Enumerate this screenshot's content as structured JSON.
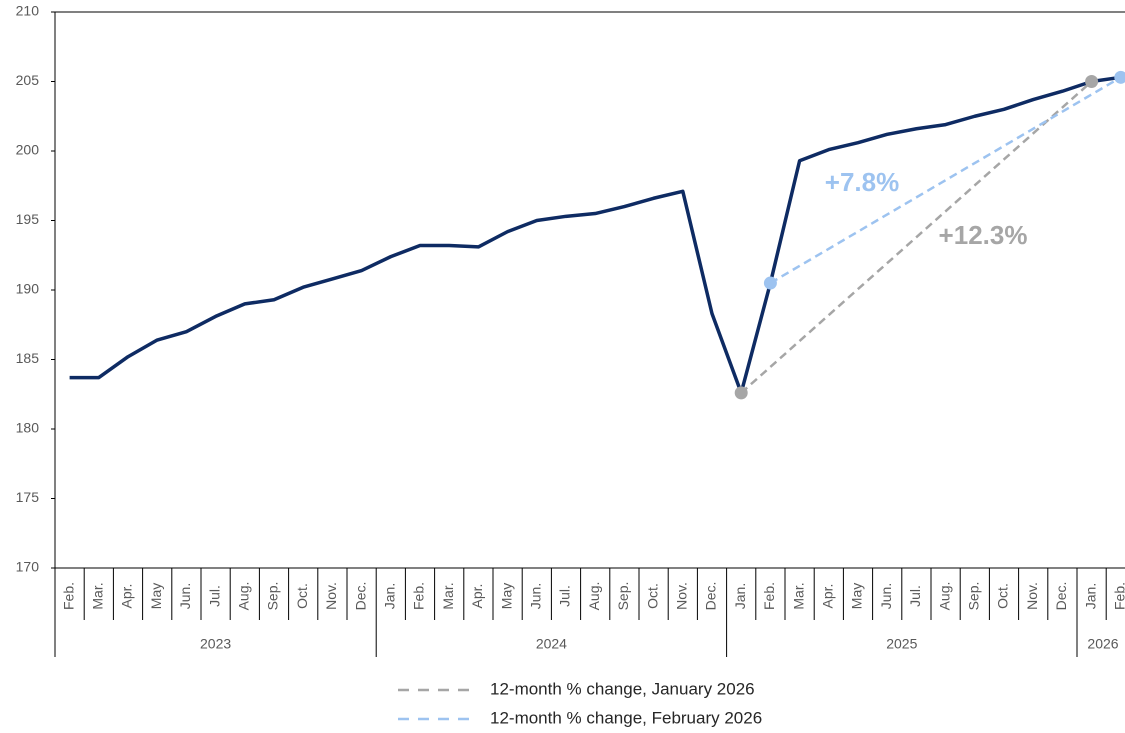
{
  "chart_data": {
    "type": "line",
    "categories": [
      "Feb.",
      "Mar.",
      "Apr.",
      "May",
      "Jun.",
      "Jul.",
      "Aug.",
      "Sep.",
      "Oct.",
      "Nov.",
      "Dec.",
      "Jan.",
      "Feb.",
      "Mar.",
      "Apr.",
      "May",
      "Jun.",
      "Jul.",
      "Aug.",
      "Sep.",
      "Oct.",
      "Nov.",
      "Dec.",
      "Jan.",
      "Feb.",
      "Mar.",
      "Apr.",
      "May",
      "Jun.",
      "Jul.",
      "Aug.",
      "Sep.",
      "Oct.",
      "Nov.",
      "Dec.",
      "Jan.",
      "Feb."
    ],
    "year_labels": [
      "2023",
      null,
      null,
      null,
      null,
      null,
      null,
      null,
      null,
      null,
      null,
      "2024",
      null,
      null,
      null,
      null,
      null,
      null,
      null,
      null,
      null,
      null,
      null,
      "2025",
      null,
      null,
      null,
      null,
      null,
      null,
      null,
      null,
      null,
      null,
      null,
      "2026",
      null
    ],
    "series": [
      {
        "color": "#0e2b63",
        "values": [
          183.7,
          183.7,
          185.2,
          186.4,
          187.0,
          188.1,
          189.0,
          189.3,
          190.2,
          190.8,
          191.4,
          192.4,
          193.2,
          193.2,
          193.1,
          194.2,
          195.0,
          195.3,
          195.5,
          196.0,
          196.6,
          197.1,
          188.3,
          182.6,
          190.5,
          199.3,
          200.1,
          200.6,
          201.2,
          201.6,
          201.9,
          202.5,
          203.0,
          203.7,
          204.3,
          205.0,
          205.3
        ]
      }
    ],
    "comparisons": [
      {
        "name": "12-month % change, January 2026",
        "color": "#a6a6a6",
        "from_index": 23,
        "to_index": 35,
        "value": 12.3,
        "value_label": "+12.3%"
      },
      {
        "name": "12-month % change, February 2026",
        "color": "#9dc3f0",
        "from_index": 24,
        "to_index": 36,
        "value": 7.8,
        "value_label": "+7.8%"
      }
    ],
    "ylim": [
      170,
      210
    ],
    "yticks": [
      170,
      175,
      180,
      185,
      190,
      195,
      200,
      205,
      210
    ]
  }
}
